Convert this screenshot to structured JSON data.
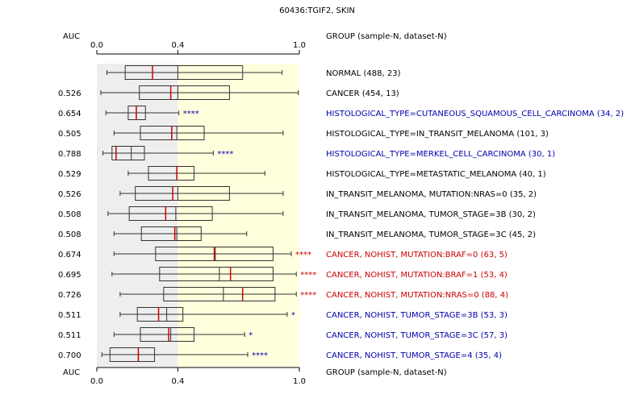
{
  "chart_data": {
    "type": "boxplot",
    "title": "60436:TGIF2, SKIN",
    "auc_header": "AUC",
    "group_header": "GROUP (sample-N, dataset-N)",
    "xlim": [
      0.0,
      1.0
    ],
    "xticks": [
      {
        "value": 0.0,
        "label": "0.0"
      },
      {
        "value": 0.4,
        "label": "0.4"
      },
      {
        "value": 1.0,
        "label": "1.0"
      }
    ],
    "reference_value": 0.4,
    "background": {
      "left_range": [
        0.0,
        0.4
      ],
      "left_color": "#eeeeee",
      "right_range": [
        0.4,
        1.0
      ],
      "right_color": "#ffffdd"
    },
    "colors": {
      "normal_text": "#000000",
      "down_text": "#0000aa",
      "up_text": "#cc0000",
      "median": "#cc0000",
      "box_edge": "#333333"
    },
    "rows": [
      {
        "auc": "",
        "label": "NORMAL (488, 23)",
        "color": "black",
        "stars": "",
        "whisker_low": 0.05,
        "q1": 0.14,
        "median": 0.275,
        "mean": 0.4,
        "q3": 0.72,
        "whisker_high": 0.915
      },
      {
        "auc": "0.526",
        "label": "CANCER (454, 13)",
        "color": "black",
        "stars": "",
        "whisker_low": 0.02,
        "q1": 0.21,
        "median": 0.365,
        "mean": 0.4,
        "q3": 0.655,
        "whisker_high": 0.995
      },
      {
        "auc": "0.654",
        "label": "HISTOLOGICAL_TYPE=CUTANEOUS_SQUAMOUS_CELL_CARCINOMA (34, 2)",
        "color": "blue",
        "stars": "****",
        "whisker_low": 0.045,
        "q1": 0.155,
        "median": 0.195,
        "mean": 0.195,
        "q3": 0.24,
        "whisker_high": 0.405
      },
      {
        "auc": "0.505",
        "label": "HISTOLOGICAL_TYPE=IN_TRANSIT_MELANOMA (101, 3)",
        "color": "black",
        "stars": "",
        "whisker_low": 0.085,
        "q1": 0.215,
        "median": 0.37,
        "mean": 0.395,
        "q3": 0.53,
        "whisker_high": 0.92
      },
      {
        "auc": "0.788",
        "label": "HISTOLOGICAL_TYPE=MERKEL_CELL_CARCINOMA (30, 1)",
        "color": "blue",
        "stars": "****",
        "whisker_low": 0.03,
        "q1": 0.075,
        "median": 0.095,
        "mean": 0.17,
        "q3": 0.235,
        "whisker_high": 0.575
      },
      {
        "auc": "0.529",
        "label": "HISTOLOGICAL_TYPE=METASTATIC_MELANOMA (40, 1)",
        "color": "black",
        "stars": "",
        "whisker_low": 0.155,
        "q1": 0.255,
        "median": 0.395,
        "mean": 0.395,
        "q3": 0.48,
        "whisker_high": 0.83
      },
      {
        "auc": "0.526",
        "label": "IN_TRANSIT_MELANOMA, MUTATION:NRAS=0 (35, 2)",
        "color": "black",
        "stars": "",
        "whisker_low": 0.115,
        "q1": 0.19,
        "median": 0.375,
        "mean": 0.4,
        "q3": 0.655,
        "whisker_high": 0.92
      },
      {
        "auc": "0.508",
        "label": "IN_TRANSIT_MELANOMA, TUMOR_STAGE=3B (30, 2)",
        "color": "black",
        "stars": "",
        "whisker_low": 0.055,
        "q1": 0.16,
        "median": 0.34,
        "mean": 0.39,
        "q3": 0.57,
        "whisker_high": 0.92
      },
      {
        "auc": "0.508",
        "label": "IN_TRANSIT_MELANOMA, TUMOR_STAGE=3C (45, 2)",
        "color": "black",
        "stars": "",
        "whisker_low": 0.085,
        "q1": 0.22,
        "median": 0.385,
        "mean": 0.395,
        "q3": 0.515,
        "whisker_high": 0.74
      },
      {
        "auc": "0.674",
        "label": "CANCER, NOHIST, MUTATION:BRAF=0 (63, 5)",
        "color": "red",
        "stars": "****",
        "whisker_low": 0.085,
        "q1": 0.29,
        "median": 0.58,
        "mean": 0.585,
        "q3": 0.87,
        "whisker_high": 0.96
      },
      {
        "auc": "0.695",
        "label": "CANCER, NOHIST, MUTATION:BRAF=1 (53, 4)",
        "color": "red",
        "stars": "****",
        "whisker_low": 0.075,
        "q1": 0.31,
        "median": 0.66,
        "mean": 0.605,
        "q3": 0.87,
        "whisker_high": 0.985
      },
      {
        "auc": "0.726",
        "label": "CANCER, NOHIST, MUTATION:NRAS=0 (88, 4)",
        "color": "red",
        "stars": "****",
        "whisker_low": 0.115,
        "q1": 0.33,
        "median": 0.72,
        "mean": 0.625,
        "q3": 0.88,
        "whisker_high": 0.985
      },
      {
        "auc": "0.511",
        "label": "CANCER, NOHIST, TUMOR_STAGE=3B (53, 3)",
        "color": "blue",
        "stars": "*",
        "whisker_low": 0.115,
        "q1": 0.2,
        "median": 0.305,
        "mean": 0.345,
        "q3": 0.425,
        "whisker_high": 0.94
      },
      {
        "auc": "0.511",
        "label": "CANCER, NOHIST, TUMOR_STAGE=3C (57, 3)",
        "color": "blue",
        "stars": "*",
        "whisker_low": 0.085,
        "q1": 0.215,
        "median": 0.355,
        "mean": 0.365,
        "q3": 0.48,
        "whisker_high": 0.73
      },
      {
        "auc": "0.700",
        "label": "CANCER, NOHIST, TUMOR_STAGE=4 (35, 4)",
        "color": "blue",
        "stars": "****",
        "whisker_low": 0.025,
        "q1": 0.065,
        "median": 0.205,
        "mean": 0.205,
        "q3": 0.285,
        "whisker_high": 0.745
      }
    ]
  }
}
